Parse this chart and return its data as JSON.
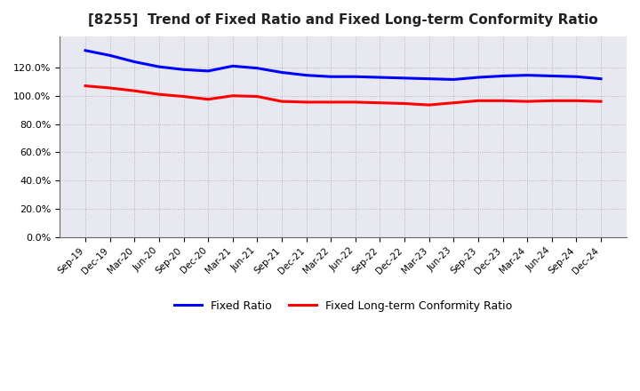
{
  "title": "[8255]  Trend of Fixed Ratio and Fixed Long-term Conformity Ratio",
  "x_labels": [
    "Sep-19",
    "Dec-19",
    "Mar-20",
    "Jun-20",
    "Sep-20",
    "Dec-20",
    "Mar-21",
    "Jun-21",
    "Sep-21",
    "Dec-21",
    "Mar-22",
    "Jun-22",
    "Sep-22",
    "Dec-22",
    "Mar-23",
    "Jun-23",
    "Sep-23",
    "Dec-23",
    "Mar-24",
    "Jun-24",
    "Sep-24",
    "Dec-24"
  ],
  "fixed_ratio": [
    132.0,
    128.5,
    124.0,
    120.5,
    118.5,
    117.5,
    121.0,
    119.5,
    116.5,
    114.5,
    113.5,
    113.5,
    113.0,
    112.5,
    112.0,
    111.5,
    113.0,
    114.0,
    114.5,
    114.0,
    113.5,
    112.0
  ],
  "fixed_lt_ratio": [
    107.0,
    105.5,
    103.5,
    101.0,
    99.5,
    97.5,
    100.0,
    99.5,
    96.0,
    95.5,
    95.5,
    95.5,
    95.0,
    94.5,
    93.5,
    95.0,
    96.5,
    96.5,
    96.0,
    96.5,
    96.5,
    96.0
  ],
  "fixed_ratio_color": "#0000FF",
  "fixed_lt_ratio_color": "#FF0000",
  "bg_color": "#FFFFFF",
  "plot_bg_color": "#E8E8F0",
  "grid_color": "#999999",
  "ylim": [
    0,
    142
  ],
  "yticks": [
    0,
    20,
    40,
    60,
    80,
    100,
    120
  ],
  "legend_fixed_ratio": "Fixed Ratio",
  "legend_fixed_lt_ratio": "Fixed Long-term Conformity Ratio",
  "line_width": 2.2
}
